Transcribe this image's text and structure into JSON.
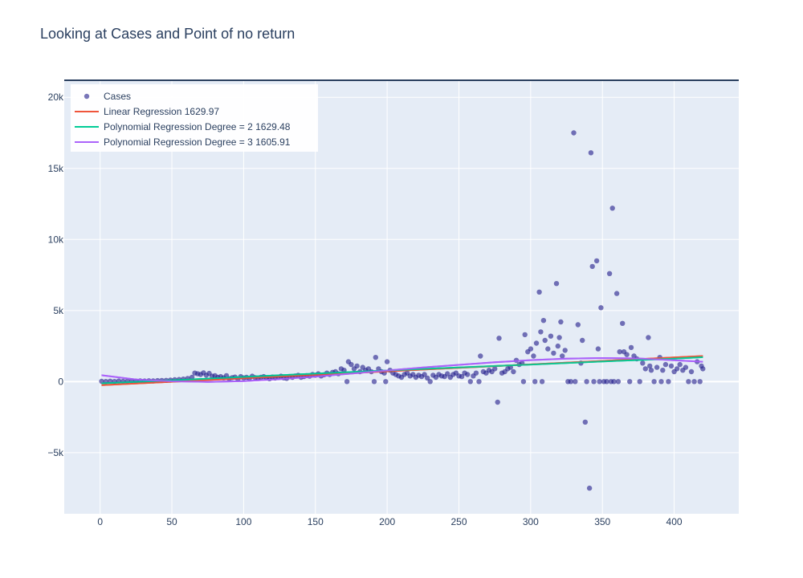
{
  "chart_data": {
    "type": "scatter",
    "title": "Looking at Cases and Point of no return",
    "xlim": [
      -25,
      445
    ],
    "ylim": [
      -9300,
      21200
    ],
    "x_ticks": [
      0,
      50,
      100,
      150,
      200,
      250,
      300,
      350,
      400
    ],
    "x_tick_labels": [
      "0",
      "50",
      "100",
      "150",
      "200",
      "250",
      "300",
      "350",
      "400"
    ],
    "y_ticks": [
      -5000,
      0,
      5000,
      10000,
      15000,
      20000
    ],
    "y_tick_labels": [
      "−5k",
      "0",
      "5k",
      "10k",
      "15k",
      "20k"
    ],
    "grid": true,
    "legend_position": "top-left",
    "colors": {
      "background": "#e5ecf6",
      "grid": "#ffffff",
      "cases": "#1f1b8a",
      "linear": "#ef553b",
      "poly2": "#00cc96",
      "poly3": "#ab63fa",
      "text": "#2a3f5f"
    },
    "series": [
      {
        "name": "Cases",
        "kind": "markers",
        "points": [
          [
            1,
            20
          ],
          [
            4,
            10
          ],
          [
            7,
            30
          ],
          [
            10,
            10
          ],
          [
            13,
            40
          ],
          [
            16,
            20
          ],
          [
            19,
            30
          ],
          [
            22,
            40
          ],
          [
            25,
            30
          ],
          [
            28,
            50
          ],
          [
            31,
            40
          ],
          [
            34,
            60
          ],
          [
            37,
            50
          ],
          [
            40,
            70
          ],
          [
            43,
            80
          ],
          [
            46,
            90
          ],
          [
            49,
            110
          ],
          [
            52,
            130
          ],
          [
            55,
            150
          ],
          [
            58,
            180
          ],
          [
            61,
            220
          ],
          [
            64,
            300
          ],
          [
            66,
            600
          ],
          [
            68,
            550
          ],
          [
            70,
            500
          ],
          [
            72,
            620
          ],
          [
            74,
            450
          ],
          [
            76,
            580
          ],
          [
            78,
            380
          ],
          [
            80,
            420
          ],
          [
            82,
            300
          ],
          [
            84,
            350
          ],
          [
            86,
            260
          ],
          [
            88,
            420
          ],
          [
            90,
            200
          ],
          [
            92,
            280
          ],
          [
            94,
            320
          ],
          [
            96,
            180
          ],
          [
            98,
            350
          ],
          [
            100,
            260
          ],
          [
            102,
            300
          ],
          [
            104,
            220
          ],
          [
            106,
            380
          ],
          [
            108,
            280
          ],
          [
            110,
            240
          ],
          [
            112,
            300
          ],
          [
            114,
            350
          ],
          [
            116,
            260
          ],
          [
            118,
            200
          ],
          [
            120,
            320
          ],
          [
            122,
            250
          ],
          [
            124,
            300
          ],
          [
            126,
            380
          ],
          [
            128,
            260
          ],
          [
            130,
            220
          ],
          [
            132,
            350
          ],
          [
            134,
            300
          ],
          [
            136,
            400
          ],
          [
            138,
            450
          ],
          [
            140,
            300
          ],
          [
            142,
            350
          ],
          [
            144,
            420
          ],
          [
            146,
            380
          ],
          [
            148,
            500
          ],
          [
            150,
            450
          ],
          [
            152,
            550
          ],
          [
            154,
            400
          ],
          [
            156,
            480
          ],
          [
            158,
            600
          ],
          [
            160,
            500
          ],
          [
            162,
            650
          ],
          [
            164,
            700
          ],
          [
            166,
            550
          ],
          [
            168,
            900
          ],
          [
            170,
            800
          ],
          [
            172,
            0
          ],
          [
            173,
            1400
          ],
          [
            175,
            1200
          ],
          [
            177,
            900
          ],
          [
            179,
            1100
          ],
          [
            181,
            700
          ],
          [
            183,
            1000
          ],
          [
            185,
            800
          ],
          [
            187,
            900
          ],
          [
            189,
            700
          ],
          [
            191,
            0
          ],
          [
            192,
            1700
          ],
          [
            194,
            900
          ],
          [
            196,
            700
          ],
          [
            198,
            600
          ],
          [
            199,
            0
          ],
          [
            200,
            1400
          ],
          [
            202,
            800
          ],
          [
            204,
            600
          ],
          [
            206,
            500
          ],
          [
            208,
            400
          ],
          [
            210,
            300
          ],
          [
            212,
            500
          ],
          [
            214,
            600
          ],
          [
            216,
            400
          ],
          [
            218,
            500
          ],
          [
            220,
            300
          ],
          [
            222,
            450
          ],
          [
            224,
            350
          ],
          [
            226,
            500
          ],
          [
            228,
            250
          ],
          [
            230,
            0
          ],
          [
            232,
            450
          ],
          [
            234,
            300
          ],
          [
            236,
            500
          ],
          [
            238,
            400
          ],
          [
            240,
            350
          ],
          [
            242,
            550
          ],
          [
            244,
            300
          ],
          [
            246,
            500
          ],
          [
            248,
            600
          ],
          [
            250,
            400
          ],
          [
            252,
            350
          ],
          [
            254,
            600
          ],
          [
            256,
            500
          ],
          [
            258,
            0
          ],
          [
            260,
            400
          ],
          [
            262,
            600
          ],
          [
            264,
            0
          ],
          [
            265,
            1800
          ],
          [
            267,
            700
          ],
          [
            269,
            600
          ],
          [
            271,
            800
          ],
          [
            273,
            700
          ],
          [
            275,
            900
          ],
          [
            277,
            -1450
          ],
          [
            278,
            3050
          ],
          [
            280,
            600
          ],
          [
            282,
            700
          ],
          [
            284,
            900
          ],
          [
            286,
            1000
          ],
          [
            288,
            700
          ],
          [
            290,
            1500
          ],
          [
            292,
            1200
          ],
          [
            294,
            1300
          ],
          [
            295,
            0
          ],
          [
            296,
            3300
          ],
          [
            298,
            2100
          ],
          [
            300,
            2300
          ],
          [
            302,
            1800
          ],
          [
            303,
            0
          ],
          [
            304,
            2700
          ],
          [
            306,
            6300
          ],
          [
            307,
            3500
          ],
          [
            308,
            0
          ],
          [
            309,
            4300
          ],
          [
            310,
            2900
          ],
          [
            312,
            2300
          ],
          [
            314,
            3200
          ],
          [
            316,
            2000
          ],
          [
            318,
            6900
          ],
          [
            319,
            2500
          ],
          [
            320,
            3100
          ],
          [
            321,
            4200
          ],
          [
            322,
            1800
          ],
          [
            324,
            2200
          ],
          [
            326,
            0
          ],
          [
            328,
            0
          ],
          [
            330,
            17500
          ],
          [
            331,
            0
          ],
          [
            333,
            4000
          ],
          [
            335,
            1300
          ],
          [
            336,
            2900
          ],
          [
            338,
            -2850
          ],
          [
            339,
            0
          ],
          [
            341,
            -7500
          ],
          [
            342,
            16100
          ],
          [
            343,
            8100
          ],
          [
            344,
            0
          ],
          [
            346,
            8500
          ],
          [
            347,
            2300
          ],
          [
            348,
            0
          ],
          [
            349,
            5200
          ],
          [
            351,
            0
          ],
          [
            353,
            0
          ],
          [
            355,
            7600
          ],
          [
            356,
            0
          ],
          [
            357,
            12200
          ],
          [
            358,
            0
          ],
          [
            360,
            6200
          ],
          [
            361,
            0
          ],
          [
            362,
            2100
          ],
          [
            364,
            4100
          ],
          [
            365,
            2100
          ],
          [
            367,
            1900
          ],
          [
            369,
            0
          ],
          [
            370,
            2400
          ],
          [
            372,
            1800
          ],
          [
            374,
            1600
          ],
          [
            376,
            0
          ],
          [
            378,
            1300
          ],
          [
            380,
            900
          ],
          [
            382,
            3100
          ],
          [
            383,
            1100
          ],
          [
            384,
            800
          ],
          [
            386,
            0
          ],
          [
            388,
            1000
          ],
          [
            390,
            1700
          ],
          [
            391,
            0
          ],
          [
            392,
            800
          ],
          [
            394,
            1200
          ],
          [
            396,
            0
          ],
          [
            398,
            1100
          ],
          [
            400,
            700
          ],
          [
            402,
            900
          ],
          [
            404,
            1200
          ],
          [
            406,
            800
          ],
          [
            408,
            1000
          ],
          [
            410,
            0
          ],
          [
            412,
            700
          ],
          [
            414,
            0
          ],
          [
            416,
            1400
          ],
          [
            418,
            0
          ],
          [
            419,
            1100
          ],
          [
            420,
            900
          ]
        ]
      },
      {
        "name": "Linear Regression 1629.97",
        "kind": "line",
        "points": [
          [
            1,
            -250
          ],
          [
            420,
            1800
          ]
        ]
      },
      {
        "name": "Polynomial Regression Degree = 2 1629.48",
        "kind": "line",
        "points": [
          [
            1,
            -120
          ],
          [
            50,
            90
          ],
          [
            100,
            330
          ],
          [
            150,
            560
          ],
          [
            200,
            780
          ],
          [
            250,
            990
          ],
          [
            300,
            1200
          ],
          [
            350,
            1420
          ],
          [
            400,
            1620
          ],
          [
            420,
            1720
          ]
        ]
      },
      {
        "name": "Polynomial Regression Degree = 3 1605.91",
        "kind": "line",
        "points": [
          [
            1,
            450
          ],
          [
            25,
            150
          ],
          [
            50,
            20
          ],
          [
            75,
            -20
          ],
          [
            100,
            30
          ],
          [
            125,
            170
          ],
          [
            150,
            350
          ],
          [
            175,
            560
          ],
          [
            200,
            780
          ],
          [
            225,
            990
          ],
          [
            250,
            1180
          ],
          [
            275,
            1360
          ],
          [
            300,
            1510
          ],
          [
            325,
            1620
          ],
          [
            350,
            1660
          ],
          [
            375,
            1630
          ],
          [
            400,
            1500
          ],
          [
            420,
            1400
          ]
        ]
      }
    ]
  }
}
